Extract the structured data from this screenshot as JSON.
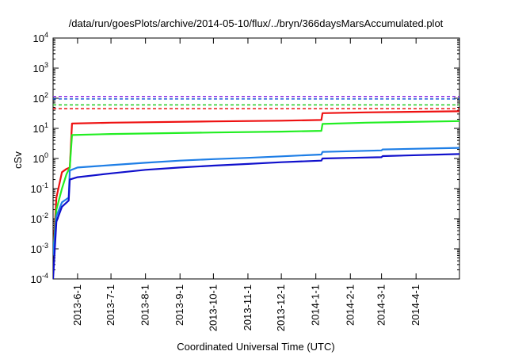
{
  "chart_data": {
    "type": "line",
    "title": "/data/run/goesPlots/archive/2014-05-10/flux/../bryn/366daysMarsAccumulated.plot",
    "xlabel": "Coordinated Universal Time (UTC)",
    "ylabel": "cSv",
    "yscale": "log",
    "ylim": [
      0.0001,
      10000
    ],
    "xlim": [
      "2013-05-10",
      "2014-05-10"
    ],
    "y_ticks": [
      {
        "base": "10",
        "exp": "-4",
        "value": 0.0001
      },
      {
        "base": "10",
        "exp": "-3",
        "value": 0.001
      },
      {
        "base": "10",
        "exp": "-2",
        "value": 0.01
      },
      {
        "base": "10",
        "exp": "-1",
        "value": 0.1
      },
      {
        "base": "10",
        "exp": "0",
        "value": 1
      },
      {
        "base": "10",
        "exp": "1",
        "value": 10
      },
      {
        "base": "10",
        "exp": "2",
        "value": 100
      },
      {
        "base": "10",
        "exp": "3",
        "value": 1000
      },
      {
        "base": "10",
        "exp": "4",
        "value": 10000
      }
    ],
    "x_ticks": [
      "2013-6-1",
      "2013-7-1",
      "2013-8-1",
      "2013-9-1",
      "2013-10-1",
      "2013-11-1",
      "2013-12-1",
      "2014-1-1",
      "2014-2-1",
      "2014-3-1",
      "2014-4-1"
    ],
    "grid": false,
    "legend": "none",
    "thresholds": [
      {
        "color": "#8a2be2",
        "value": 115
      },
      {
        "color": "#1e5fd6",
        "value": 95
      },
      {
        "color": "#22cc22",
        "value": 60
      },
      {
        "color": "#ee1111",
        "value": 45
      }
    ],
    "series": [
      {
        "color": "#ee1111",
        "points": [
          [
            "2013-05-10",
            0.0006
          ],
          [
            "2013-05-13",
            0.05
          ],
          [
            "2013-05-18",
            0.35
          ],
          [
            "2013-05-22",
            0.45
          ],
          [
            "2013-05-25",
            0.5
          ],
          [
            "2013-05-27",
            14.5
          ],
          [
            "2013-07-01",
            15.5
          ],
          [
            "2013-10-01",
            17
          ],
          [
            "2013-12-01",
            18
          ],
          [
            "2014-01-06",
            19
          ],
          [
            "2014-01-07",
            32
          ],
          [
            "2014-02-15",
            34
          ],
          [
            "2014-05-10",
            37
          ]
        ]
      },
      {
        "color": "#22ee22",
        "points": [
          [
            "2013-05-10",
            0.0006
          ],
          [
            "2013-05-13",
            0.02
          ],
          [
            "2013-05-18",
            0.1
          ],
          [
            "2013-05-22",
            0.3
          ],
          [
            "2013-05-25",
            0.5
          ],
          [
            "2013-05-27",
            6.0
          ],
          [
            "2013-07-01",
            6.5
          ],
          [
            "2013-10-01",
            7.3
          ],
          [
            "2013-12-01",
            7.8
          ],
          [
            "2014-01-06",
            8.3
          ],
          [
            "2014-01-07",
            14
          ],
          [
            "2014-02-15",
            15.5
          ],
          [
            "2014-05-10",
            17.5
          ]
        ]
      },
      {
        "color": "#1e7ee6",
        "points": [
          [
            "2013-05-10",
            0.0006
          ],
          [
            "2013-05-13",
            0.012
          ],
          [
            "2013-05-18",
            0.035
          ],
          [
            "2013-05-24",
            0.05
          ],
          [
            "2013-05-25",
            0.4
          ],
          [
            "2013-06-01",
            0.5
          ],
          [
            "2013-07-01",
            0.6
          ],
          [
            "2013-08-01",
            0.72
          ],
          [
            "2013-09-01",
            0.85
          ],
          [
            "2013-10-01",
            0.95
          ],
          [
            "2013-11-01",
            1.05
          ],
          [
            "2013-12-01",
            1.18
          ],
          [
            "2014-01-06",
            1.35
          ],
          [
            "2014-01-07",
            1.65
          ],
          [
            "2014-02-01",
            1.75
          ],
          [
            "2014-03-01",
            1.85
          ],
          [
            "2014-03-02",
            2.0
          ],
          [
            "2014-05-10",
            2.25
          ]
        ]
      },
      {
        "color": "#1010cc",
        "points": [
          [
            "2013-05-10",
            0.0001
          ],
          [
            "2013-05-13",
            0.008
          ],
          [
            "2013-05-18",
            0.025
          ],
          [
            "2013-05-24",
            0.04
          ],
          [
            "2013-05-25",
            0.2
          ],
          [
            "2013-06-01",
            0.24
          ],
          [
            "2013-07-01",
            0.32
          ],
          [
            "2013-08-01",
            0.42
          ],
          [
            "2013-09-01",
            0.5
          ],
          [
            "2013-10-01",
            0.58
          ],
          [
            "2013-11-01",
            0.66
          ],
          [
            "2013-12-01",
            0.75
          ],
          [
            "2014-01-06",
            0.85
          ],
          [
            "2014-01-07",
            1.0
          ],
          [
            "2014-02-01",
            1.05
          ],
          [
            "2014-03-01",
            1.1
          ],
          [
            "2014-03-02",
            1.2
          ],
          [
            "2014-05-10",
            1.4
          ]
        ]
      }
    ]
  }
}
